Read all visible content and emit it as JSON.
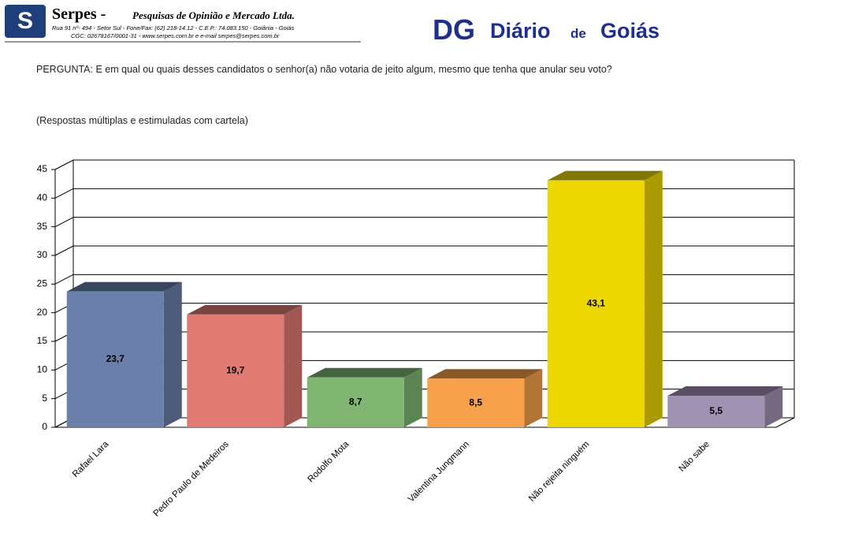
{
  "header": {
    "company": "Serpes -",
    "company_tagline": "Pesquisas de Opinião e Mercado Ltda.",
    "address": "Rua 91 nº- 494 - Setor Sul - Fone/Fax: (62) 218-14.12 - C.E.P.: 74.083.150 - Goiânia - Goiás",
    "registry": "CGC: 02678167/0001-31 - www.serpes.com.br e e-mail serpes@serpes.com.br",
    "partner_mark": "DG",
    "partner_name": "Diário",
    "partner_connector": "de",
    "partner_place": "Goiás"
  },
  "chart_data": {
    "type": "bar3d",
    "title": "PERGUNTA: E em qual ou quais desses candidatos o senhor(a) não votaria de jeito algum, mesmo que tenha que anular seu voto?",
    "subtitle": "(Respostas múltiplas e estimuladas com cartela)",
    "categories": [
      "Rafael Lara",
      "Pedro Paulo de Medeiros",
      "Rodolfo Mota",
      "Valentina Jungmann",
      "Não rejeita ninguém",
      "Não sabe"
    ],
    "values": [
      23.7,
      19.7,
      8.7,
      8.5,
      43.1,
      5.5
    ],
    "value_labels": [
      "23,7",
      "19,7",
      "8,7",
      "8,5",
      "43,1",
      "5,5"
    ],
    "colors": [
      "#6a80aa",
      "#e07a72",
      "#80b672",
      "#f7a24a",
      "#ecd800",
      "#a092b2"
    ],
    "ylim": [
      0,
      45
    ],
    "yticks": [
      0,
      5,
      10,
      15,
      20,
      25,
      30,
      35,
      40,
      45
    ],
    "grid": true
  }
}
